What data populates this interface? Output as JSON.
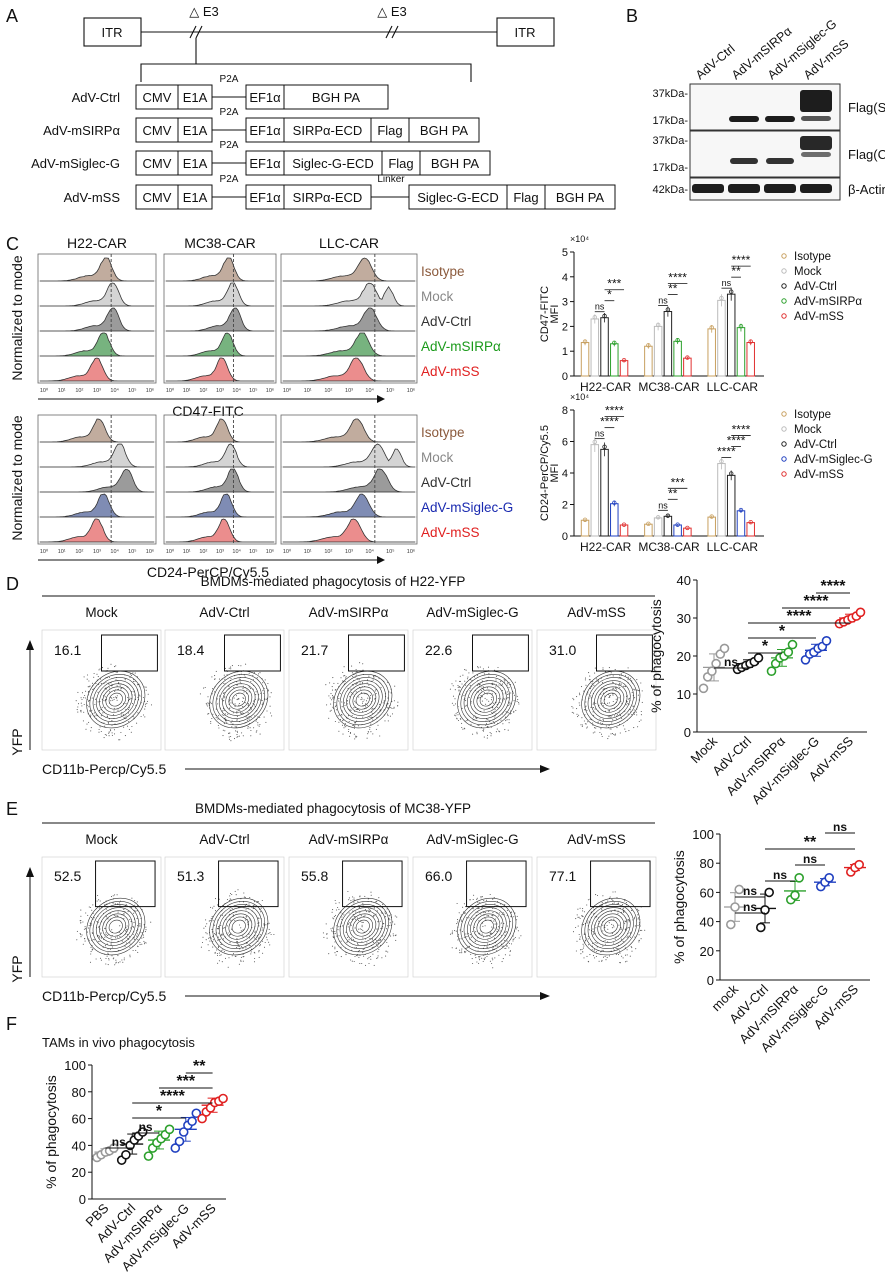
{
  "panel_letters": [
    "A",
    "B",
    "C",
    "D",
    "E",
    "F"
  ],
  "panel_a": {
    "itr_left": "ITR",
    "itr_right": "ITR",
    "delta_e3": "△ E3",
    "p2a": "P2A",
    "linker": "Linker",
    "constructs": [
      {
        "name": "AdV-Ctrl",
        "segments": [
          "CMV",
          "E1A",
          "EF1α",
          "BGH PA"
        ]
      },
      {
        "name": "AdV-mSIRPα",
        "segments": [
          "CMV",
          "E1A",
          "EF1α",
          "SIRPα-ECD",
          "Flag",
          "BGH PA"
        ]
      },
      {
        "name": "AdV-mSiglec-G",
        "segments": [
          "CMV",
          "E1A",
          "EF1α",
          "Siglec-G-ECD",
          "Flag",
          "BGH PA"
        ]
      },
      {
        "name": "AdV-mSS",
        "segments": [
          "CMV",
          "E1A",
          "EF1α",
          "SIRPα-ECD",
          "Siglec-G-ECD",
          "Flag",
          "BGH PA"
        ]
      }
    ]
  },
  "panel_b": {
    "lanes": [
      "AdV-Ctrl",
      "AdV-mSIRPα",
      "AdV-mSiglec-G",
      "AdV-mSS"
    ],
    "blots": [
      {
        "label": "Flag(Sup)",
        "markers": [
          "37kDa-",
          "17kDa-"
        ]
      },
      {
        "label": "Flag(Cyto)",
        "markers": [
          "37kDa-",
          "17kDa-"
        ]
      },
      {
        "label": "β-Actin",
        "markers": [
          "42kDa-"
        ]
      }
    ]
  },
  "panel_c": {
    "columns": [
      "H22-CAR",
      "MC38-CAR",
      "LLC-CAR"
    ],
    "ylabel": "Normalized to mode",
    "top": {
      "xlabel": "CD47-FITC",
      "labels": [
        "Isotype",
        "Mock",
        "AdV-Ctrl",
        "AdV-mSIRPα",
        "AdV-mSS"
      ]
    },
    "bottom": {
      "xlabel": "CD24-PerCP/Cy5.5",
      "labels": [
        "Isotype",
        "Mock",
        "AdV-Ctrl",
        "AdV-mSiglec-G",
        "AdV-mSS"
      ]
    },
    "colors": {
      "isotype": "#a0806a",
      "mock": "#bdbdbd",
      "ctrl": "#666666",
      "sirpa": "#2e8b3a",
      "siglec": "#3a4f8c",
      "mss": "#e05050"
    },
    "label_colors": {
      "isotype": "#8b5a3c",
      "mock": "#888888",
      "ctrl": "#333333",
      "sirpa": "#1a9a1a",
      "siglec": "#1a2ab0",
      "mss": "#e02020"
    },
    "exp_ticks": [
      "10⁰",
      "10¹",
      "10²",
      "10³",
      "10⁴",
      "10⁵",
      "10⁶"
    ]
  },
  "panel_d": {
    "title": "BMDMs-mediated phagocytosis of H22-YFP",
    "groups": [
      "Mock",
      "AdV-Ctrl",
      "AdV-mSIRPα",
      "AdV-mSiglec-G",
      "AdV-mSS"
    ],
    "gate_values": [
      "16.1",
      "18.4",
      "21.7",
      "22.6",
      "31.0"
    ],
    "xlabel": "CD11b-Percp/Cy5.5",
    "ylabel": "YFP"
  },
  "panel_e": {
    "title": "BMDMs-mediated phagocytosis of MC38-YFP",
    "groups": [
      "Mock",
      "AdV-Ctrl",
      "AdV-mSIRPα",
      "AdV-mSiglec-G",
      "AdV-mSS"
    ],
    "gate_values": [
      "52.5",
      "51.3",
      "55.8",
      "66.0",
      "77.1"
    ],
    "xlabel": "CD11b-Percp/Cy5.5",
    "ylabel": "YFP"
  },
  "panel_f": {
    "title": "TAMs in vivo phagocytosis"
  },
  "chart_data": [
    {
      "type": "bar",
      "id": "C-top-bar",
      "ylabel": "CD47-FITC MFI",
      "y_scale_note": "×10⁴",
      "ylim": [
        0,
        5
      ],
      "yticks": [
        0,
        1,
        2,
        3,
        4,
        5
      ],
      "categories": [
        "H22-CAR",
        "MC38-CAR",
        "LLC-CAR"
      ],
      "series": [
        {
          "name": "Isotype",
          "color": "#c8a060",
          "values": [
            1.35,
            1.2,
            1.9
          ]
        },
        {
          "name": "Mock",
          "color": "#bbbbbb",
          "values": [
            2.3,
            2.0,
            3.05
          ]
        },
        {
          "name": "AdV-Ctrl",
          "color": "#222222",
          "values": [
            2.35,
            2.6,
            3.3
          ]
        },
        {
          "name": "AdV-mSIRPα",
          "color": "#2ca02c",
          "values": [
            1.3,
            1.4,
            1.95
          ]
        },
        {
          "name": "AdV-mSS",
          "color": "#e03030",
          "values": [
            0.62,
            0.72,
            1.35
          ]
        }
      ],
      "significance": [
        {
          "group": "H22-CAR",
          "labels": [
            "***",
            "*",
            "ns"
          ]
        },
        {
          "group": "MC38-CAR",
          "labels": [
            "****",
            "**",
            "ns"
          ]
        },
        {
          "group": "LLC-CAR",
          "labels": [
            "****",
            "**",
            "ns"
          ]
        }
      ],
      "legend_position": "right"
    },
    {
      "type": "bar",
      "id": "C-bottom-bar",
      "ylabel": "CD24-PerCP/Cy5.5 MFI",
      "y_scale_note": "×10⁴",
      "ylim": [
        0,
        8
      ],
      "yticks": [
        0,
        2,
        4,
        6,
        8
      ],
      "categories": [
        "H22-CAR",
        "MC38-CAR",
        "LLC-CAR"
      ],
      "series": [
        {
          "name": "Isotype",
          "color": "#c8a060",
          "values": [
            1.0,
            0.75,
            1.2
          ]
        },
        {
          "name": "Mock",
          "color": "#bbbbbb",
          "values": [
            5.8,
            1.15,
            4.6
          ]
        },
        {
          "name": "AdV-Ctrl",
          "color": "#222222",
          "values": [
            5.5,
            1.25,
            3.85
          ]
        },
        {
          "name": "AdV-mSiglec-G",
          "color": "#2040c0",
          "values": [
            2.05,
            0.7,
            1.6
          ]
        },
        {
          "name": "AdV-mSS",
          "color": "#e03030",
          "values": [
            0.7,
            0.5,
            0.85
          ]
        }
      ],
      "significance": [
        {
          "group": "H22-CAR",
          "labels": [
            "****",
            "****",
            "ns"
          ]
        },
        {
          "group": "MC38-CAR",
          "labels": [
            "***",
            "**",
            "ns"
          ]
        },
        {
          "group": "LLC-CAR",
          "labels": [
            "****",
            "****",
            "****"
          ]
        }
      ],
      "legend_position": "right"
    },
    {
      "type": "scatter",
      "id": "D-dot",
      "ylabel": "% of phagocytosis",
      "ylim": [
        0,
        40
      ],
      "yticks": [
        0,
        10,
        20,
        30,
        40
      ],
      "categories": [
        "Mock",
        "AdV-Ctrl",
        "AdV-mSIRPα",
        "AdV-mSiglec-G",
        "AdV-mSS"
      ],
      "colors": [
        "#999999",
        "#111111",
        "#2ca02c",
        "#2040c0",
        "#e02020"
      ],
      "points": [
        [
          11.5,
          14.5,
          16.0,
          18.0,
          20.5,
          22.0
        ],
        [
          16.5,
          17.0,
          17.5,
          18.0,
          18.5,
          19.5
        ],
        [
          16.0,
          18.0,
          19.5,
          20.0,
          21.0,
          23.0
        ],
        [
          19.0,
          20.5,
          21.0,
          22.0,
          22.5,
          24.0
        ],
        [
          28.5,
          29.0,
          29.5,
          30.0,
          30.5,
          31.5
        ]
      ],
      "means": [
        17.0,
        18.0,
        19.5,
        21.5,
        30.0
      ],
      "significance": [
        "****",
        "****",
        "****",
        "*",
        "*",
        "ns"
      ]
    },
    {
      "type": "scatter",
      "id": "E-dot",
      "ylabel": "% of phagocytosis",
      "ylim": [
        0,
        100
      ],
      "yticks": [
        0,
        20,
        40,
        60,
        80,
        100
      ],
      "categories": [
        "mock",
        "AdV-Ctrl",
        "AdV-mSIRPα",
        "AdV-mSiglec-G",
        "AdV-mSS"
      ],
      "colors": [
        "#999999",
        "#111111",
        "#2ca02c",
        "#2040c0",
        "#e02020"
      ],
      "points": [
        [
          38.0,
          50.0,
          62.0
        ],
        [
          36.0,
          48.0,
          60.0
        ],
        [
          55.0,
          58.0,
          70.0
        ],
        [
          64.0,
          67.0,
          70.0
        ],
        [
          74.0,
          77.0,
          79.0
        ]
      ],
      "means": [
        50.0,
        49.0,
        61.0,
        67.0,
        77.0
      ],
      "significance": [
        "ns",
        "**",
        "ns",
        "ns",
        "ns",
        "ns"
      ]
    },
    {
      "type": "scatter",
      "id": "F-dot",
      "ylabel": "% of phagocytosis",
      "ylim": [
        0,
        100
      ],
      "yticks": [
        0,
        20,
        40,
        60,
        80,
        100
      ],
      "categories": [
        "PBS",
        "AdV-Ctrl",
        "AdV-mSIRPα",
        "AdV-mSiglec-G",
        "AdV-mSS"
      ],
      "colors": [
        "#999999",
        "#111111",
        "#2ca02c",
        "#2040c0",
        "#e02020"
      ],
      "points": [
        [
          31.0,
          33.0,
          35.0,
          36.0,
          38.0
        ],
        [
          29.0,
          33.0,
          40.0,
          44.0,
          47.0,
          50.0
        ],
        [
          32.0,
          38.0,
          42.0,
          45.0,
          48.0,
          52.0
        ],
        [
          38.0,
          43.0,
          50.0,
          55.0,
          58.0,
          64.0
        ],
        [
          60.0,
          65.0,
          68.0,
          72.0,
          73.0,
          75.0
        ]
      ],
      "means": [
        35.0,
        41.0,
        44.0,
        52.0,
        70.0
      ],
      "significance": [
        "**",
        "***",
        "****",
        "*",
        "ns",
        "ns"
      ]
    }
  ]
}
